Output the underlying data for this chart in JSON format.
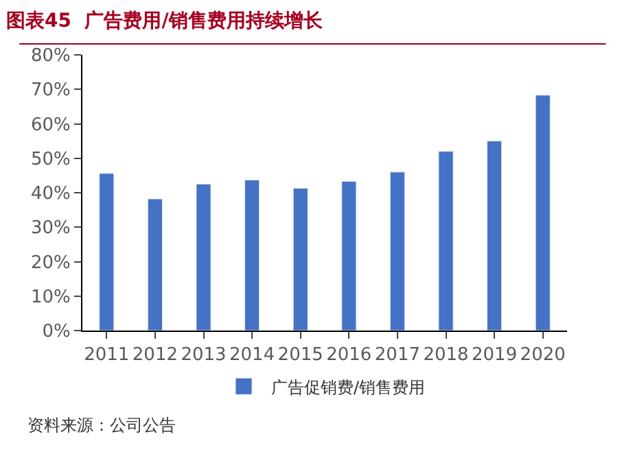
{
  "chart_data": {
    "type": "bar",
    "title": "图表45  广告费用/销售费用持续增长",
    "categories": [
      "2011",
      "2012",
      "2013",
      "2014",
      "2015",
      "2016",
      "2017",
      "2018",
      "2019",
      "2020"
    ],
    "series": [
      {
        "name": "广告促销费/销售费用",
        "color": "#4472c4",
        "values": [
          45.6,
          38.2,
          42.5,
          43.7,
          41.3,
          43.3,
          46.0,
          52.0,
          55.0,
          68.3
        ]
      }
    ],
    "ylim": [
      0,
      80
    ],
    "yticks": [
      {
        "value": 0,
        "label": "0%"
      },
      {
        "value": 10,
        "label": "10%"
      },
      {
        "value": 20,
        "label": "20%"
      },
      {
        "value": 30,
        "label": "30%"
      },
      {
        "value": 40,
        "label": "40%"
      },
      {
        "value": 50,
        "label": "50%"
      },
      {
        "value": 60,
        "label": "60%"
      },
      {
        "value": 70,
        "label": "70%"
      },
      {
        "value": 80,
        "label": "80%"
      }
    ],
    "legend": "bottom",
    "annotations": [
      "资料来源：公司公告"
    ]
  }
}
